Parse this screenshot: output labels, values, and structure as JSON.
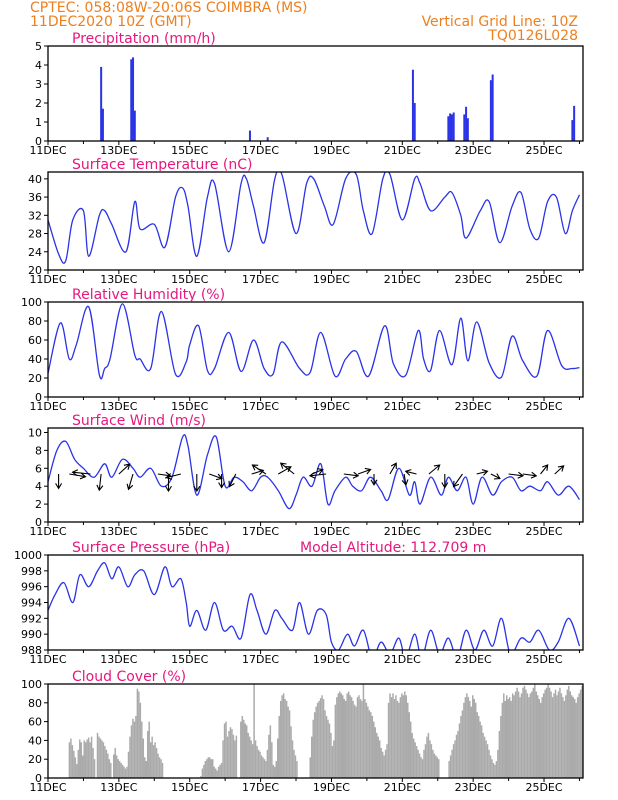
{
  "header": {
    "line1": "CPTEC:   058:08W-20:06S   COIMBRA (MS)",
    "line2": "11DEC2020 10Z (GMT)",
    "grid_note": "Vertical Grid Line: 10Z",
    "code": "TQ0126L028"
  },
  "colors": {
    "header": "#ee7f1f",
    "title": "#e6177f",
    "series": "#2a33e6",
    "cloud": "#aaaaaa",
    "arrow": "#000000"
  },
  "x_axis": {
    "labels": [
      "11DEC",
      "13DEC",
      "15DEC",
      "17DEC",
      "19DEC",
      "21DEC",
      "23DEC",
      "25DEC"
    ],
    "label_days": [
      0,
      2,
      4,
      6,
      8,
      10,
      12,
      14
    ],
    "range_days": [
      0,
      15.1
    ]
  },
  "chart_data": [
    {
      "type": "bar",
      "title": "Precipitation (mm/h)",
      "ylim": [
        0,
        5
      ],
      "yticks": [
        0,
        1,
        2,
        3,
        4,
        5
      ],
      "bars": [
        [
          1.5,
          3.9
        ],
        [
          1.55,
          1.7
        ],
        [
          2.35,
          4.3
        ],
        [
          2.4,
          4.4
        ],
        [
          2.45,
          1.6
        ],
        [
          5.7,
          0.55
        ],
        [
          6.2,
          0.2
        ],
        [
          10.3,
          3.75
        ],
        [
          10.35,
          2.0
        ],
        [
          11.3,
          1.3
        ],
        [
          11.35,
          1.45
        ],
        [
          11.4,
          1.4
        ],
        [
          11.45,
          1.5
        ],
        [
          11.75,
          1.4
        ],
        [
          11.8,
          1.8
        ],
        [
          11.85,
          1.2
        ],
        [
          12.5,
          3.2
        ],
        [
          12.55,
          3.5
        ],
        [
          14.8,
          1.1
        ],
        [
          14.85,
          1.85
        ]
      ]
    },
    {
      "type": "line",
      "title": "Surface Temperature (nC)",
      "ylim": [
        20,
        41.5
      ],
      "yticks": [
        20,
        24,
        28,
        32,
        36,
        40
      ],
      "x": [
        0,
        0.3,
        0.5,
        0.7,
        1.0,
        1.15,
        1.45,
        1.6,
        1.8,
        2.2,
        2.45,
        2.6,
        3.0,
        3.3,
        3.6,
        3.8,
        3.95,
        4.2,
        4.5,
        4.7,
        5.1,
        5.45,
        5.6,
        5.8,
        6.1,
        6.4,
        6.6,
        7.0,
        7.3,
        7.5,
        7.8,
        8.05,
        8.4,
        8.7,
        8.9,
        9.15,
        9.45,
        9.65,
        10.0,
        10.35,
        10.5,
        10.8,
        11.2,
        11.4,
        11.65,
        11.8,
        12.2,
        12.45,
        12.75,
        13.1,
        13.35,
        13.6,
        13.85,
        14.1,
        14.35,
        14.6,
        14.8,
        15.0
      ],
      "values": [
        31,
        23.5,
        22,
        31,
        33,
        23,
        32,
        33,
        30,
        24,
        35,
        29,
        30,
        25,
        36,
        38,
        34,
        23,
        36,
        39,
        24,
        39,
        40,
        34,
        26,
        40,
        41,
        28,
        39,
        40,
        34,
        30,
        40,
        41,
        33,
        28,
        40,
        41,
        31,
        40,
        39,
        33,
        36,
        37,
        32,
        27,
        33,
        35,
        26,
        34,
        37,
        29,
        27,
        35,
        36,
        28,
        33,
        36.5
      ]
    },
    {
      "type": "line",
      "title": "Relative Humidity (%)",
      "ylim": [
        0,
        100
      ],
      "yticks": [
        0,
        20,
        40,
        60,
        80,
        100
      ],
      "x": [
        0,
        0.35,
        0.6,
        0.8,
        1.15,
        1.45,
        1.6,
        1.75,
        2.1,
        2.45,
        2.6,
        2.9,
        3.2,
        3.6,
        3.9,
        4.0,
        4.25,
        4.5,
        4.7,
        5.1,
        5.45,
        5.8,
        6.1,
        6.35,
        6.6,
        7.1,
        7.4,
        7.7,
        8.1,
        8.4,
        8.7,
        9.05,
        9.5,
        9.75,
        10.1,
        10.45,
        10.6,
        10.8,
        11.05,
        11.4,
        11.65,
        11.85,
        12.1,
        12.45,
        12.8,
        13.1,
        13.4,
        13.8,
        14.1,
        14.5,
        14.8,
        15.0
      ],
      "values": [
        25,
        78,
        40,
        55,
        95,
        23,
        30,
        40,
        98,
        44,
        40,
        30,
        90,
        24,
        37,
        55,
        75,
        28,
        30,
        68,
        27,
        60,
        30,
        24,
        58,
        30,
        26,
        68,
        22,
        40,
        48,
        22,
        75,
        35,
        23,
        70,
        40,
        28,
        70,
        34,
        83,
        38,
        79,
        36,
        21,
        64,
        38,
        22,
        70,
        33,
        30,
        31
      ],
      "bold_ticks": [
        0,
        100
      ]
    },
    {
      "type": "line",
      "title": "Surface Wind (m/s)",
      "ylim": [
        0,
        10.5
      ],
      "yticks": [
        0,
        2,
        4,
        6,
        8,
        10
      ],
      "x": [
        0,
        0.25,
        0.5,
        0.75,
        1.0,
        1.3,
        1.6,
        1.8,
        2.1,
        2.4,
        2.6,
        2.9,
        3.2,
        3.5,
        3.8,
        3.95,
        4.2,
        4.5,
        4.75,
        5.0,
        5.25,
        5.5,
        5.75,
        6.0,
        6.2,
        6.5,
        6.8,
        7.0,
        7.2,
        7.45,
        7.7,
        7.9,
        8.1,
        8.4,
        8.6,
        8.85,
        9.1,
        9.4,
        9.6,
        9.9,
        10.2,
        10.35,
        10.5,
        10.8,
        11.1,
        11.3,
        11.55,
        11.8,
        12.0,
        12.25,
        12.55,
        12.8,
        13.1,
        13.35,
        13.6,
        13.9,
        14.1,
        14.4,
        14.7,
        15.0
      ],
      "values": [
        4.5,
        8,
        9,
        7,
        6,
        5,
        6.5,
        5,
        7,
        6,
        5,
        6,
        4,
        5,
        9.5,
        8.5,
        3,
        7.5,
        9.5,
        4,
        5,
        4.5,
        3.5,
        5,
        5,
        3.5,
        1.5,
        3,
        5,
        4,
        6.5,
        2,
        3.5,
        5,
        4,
        3.5,
        5,
        3.5,
        2.5,
        6,
        3,
        4.5,
        2,
        5,
        3,
        5,
        3.5,
        5,
        2,
        5,
        3,
        4.5,
        5,
        3.5,
        4,
        3.5,
        4.5,
        3,
        4,
        2.5
      ],
      "arrows": [
        [
          0.3,
          0,
          -1.6
        ],
        [
          0.6,
          1.8,
          -0.3
        ],
        [
          1.2,
          -2.0,
          0.2
        ],
        [
          1.5,
          -0.2,
          -1.8
        ],
        [
          2.0,
          1.2,
          1.1
        ],
        [
          2.4,
          -0.5,
          -1.7
        ],
        [
          3.1,
          1.4,
          -0.2
        ],
        [
          3.4,
          0,
          -1.9
        ],
        [
          3.75,
          -1.6,
          -0.4
        ],
        [
          4.2,
          0,
          -1.9
        ],
        [
          4.55,
          1.4,
          -0.5
        ],
        [
          4.9,
          0,
          -1.5
        ],
        [
          5.3,
          -0.7,
          -1.4
        ],
        [
          5.75,
          1.3,
          0.4
        ],
        [
          6.15,
          -1.5,
          1.0
        ],
        [
          6.5,
          1.4,
          0.8
        ],
        [
          6.95,
          -1.5,
          1.2
        ],
        [
          7.45,
          1.2,
          0.5
        ],
        [
          7.85,
          -1.8,
          -0.2
        ],
        [
          8.35,
          1.6,
          -0.2
        ],
        [
          8.75,
          1.4,
          0.5
        ],
        [
          9.2,
          0,
          -1.2
        ],
        [
          9.65,
          0.7,
          1.2
        ],
        [
          10.05,
          0.2,
          -1.2
        ],
        [
          10.4,
          -1.2,
          0.3
        ],
        [
          10.75,
          1.2,
          1.0
        ],
        [
          11.2,
          0,
          -1.5
        ],
        [
          11.7,
          -1.0,
          -1.4
        ],
        [
          12.1,
          1.2,
          0.3
        ],
        [
          12.5,
          1.0,
          -0.5
        ],
        [
          13.0,
          1.6,
          -0.2
        ],
        [
          13.4,
          1.5,
          -0.2
        ],
        [
          13.9,
          0.8,
          1.0
        ],
        [
          14.3,
          1.0,
          0.9
        ]
      ]
    },
    {
      "type": "line",
      "title": "Surface Pressure (hPa)",
      "annotation": "Model Altitude: 112.709  m",
      "ylim": [
        988,
        1000
      ],
      "yticks": [
        988,
        990,
        992,
        994,
        996,
        998,
        1000
      ],
      "x": [
        0,
        0.2,
        0.45,
        0.7,
        0.9,
        1.15,
        1.4,
        1.6,
        1.8,
        2.0,
        2.25,
        2.45,
        2.7,
        3.0,
        3.3,
        3.5,
        3.75,
        3.9,
        4.0,
        4.2,
        4.45,
        4.7,
        4.95,
        5.2,
        5.45,
        5.7,
        5.9,
        6.15,
        6.4,
        6.6,
        6.9,
        7.1,
        7.35,
        7.6,
        7.85,
        8.0,
        8.2,
        8.45,
        8.65,
        8.9,
        9.15,
        9.4,
        9.65,
        9.9,
        10.1,
        10.35,
        10.55,
        10.8,
        11.05,
        11.3,
        11.55,
        11.8,
        12.05,
        12.3,
        12.55,
        12.8,
        13.05,
        13.35,
        13.6,
        13.85,
        14.15,
        14.4,
        14.7,
        15.0
      ],
      "values": [
        993,
        995,
        996.5,
        994,
        997.5,
        996,
        998,
        999,
        997,
        998.5,
        996,
        997.5,
        998,
        995,
        998.5,
        996,
        997,
        994,
        991,
        993,
        990.5,
        994,
        990.5,
        991,
        989.5,
        995,
        993,
        990,
        993,
        992,
        990.5,
        994,
        990,
        993,
        992.5,
        989,
        988,
        990,
        988.5,
        990.5,
        987,
        989,
        987.5,
        989.5,
        987,
        990,
        987,
        990.5,
        987.5,
        989.5,
        987,
        990.5,
        988,
        990.5,
        988.5,
        992,
        987.5,
        989.5,
        989,
        990.5,
        988,
        989,
        992,
        988.5
      ]
    },
    {
      "type": "bar",
      "title": "Cloud Cover (%)",
      "ylim": [
        0,
        100
      ],
      "yticks": [
        0,
        20,
        40,
        60,
        80,
        100
      ],
      "x_step_days": 0.0417,
      "values": [
        0,
        0,
        0,
        0,
        0,
        0,
        0,
        0,
        0,
        0,
        0,
        0,
        0,
        0,
        38,
        42,
        35,
        29,
        22,
        15,
        30,
        41,
        38,
        24,
        40,
        38,
        41,
        43,
        38,
        44,
        32,
        20,
        0,
        48,
        44,
        42,
        40,
        38,
        34,
        30,
        26,
        20,
        16,
        0,
        25,
        32,
        24,
        20,
        18,
        16,
        14,
        12,
        10,
        12,
        28,
        44,
        56,
        63,
        60,
        66,
        95,
        92,
        80,
        60,
        42,
        22,
        18,
        50,
        60,
        38,
        44,
        35,
        38,
        32,
        26,
        22,
        20,
        16,
        0,
        0,
        0,
        0,
        0,
        0,
        0,
        0,
        0,
        0,
        0,
        0,
        0,
        0,
        0,
        0,
        0,
        0,
        0,
        0,
        0,
        0,
        0,
        0,
        0,
        2,
        10,
        14,
        18,
        20,
        22,
        22,
        20,
        20,
        12,
        10,
        8,
        12,
        14,
        16,
        40,
        58,
        60,
        44,
        50,
        54,
        52,
        46,
        40,
        45,
        0,
        0,
        60,
        66,
        62,
        58,
        56,
        48,
        44,
        40,
        36,
        100,
        40,
        34,
        30,
        28,
        24,
        22,
        20,
        18,
        30,
        46,
        56,
        38,
        14,
        12,
        18,
        42,
        66,
        82,
        88,
        90,
        84,
        82,
        76,
        72,
        55,
        40,
        30,
        24,
        18,
        0,
        0,
        0,
        0,
        0,
        0,
        0,
        0,
        22,
        44,
        62,
        70,
        76,
        80,
        82,
        85,
        88,
        84,
        72,
        66,
        62,
        58,
        48,
        34,
        40,
        78,
        86,
        90,
        92,
        90,
        88,
        84,
        82,
        90,
        92,
        88,
        86,
        82,
        78,
        76,
        86,
        88,
        84,
        82,
        100,
        84,
        80,
        76,
        72,
        70,
        66,
        60,
        54,
        48,
        44,
        40,
        32,
        28,
        24,
        30,
        36,
        80,
        90,
        86,
        90,
        84,
        88,
        82,
        80,
        86,
        90,
        88,
        92,
        88,
        80,
        70,
        60,
        48,
        42,
        38,
        34,
        30,
        26,
        22,
        20,
        30,
        36,
        44,
        48,
        40,
        36,
        30,
        26,
        24,
        22,
        20,
        0,
        0,
        0,
        0,
        0,
        0,
        18,
        24,
        30,
        36,
        40,
        46,
        50,
        58,
        66,
        72,
        80,
        86,
        90,
        86,
        82,
        76,
        88,
        84,
        80,
        70,
        66,
        60,
        56,
        48,
        44,
        40,
        36,
        30,
        24,
        20,
        16,
        14,
        18,
        30,
        50,
        66,
        80,
        90,
        82,
        88,
        84,
        86,
        82,
        90,
        88,
        92,
        96,
        92,
        86,
        90,
        96,
        98,
        94,
        90,
        86,
        90,
        92,
        96,
        100,
        92,
        88,
        84,
        80,
        86,
        90,
        94,
        96,
        100,
        96,
        92,
        86,
        90,
        94,
        88,
        92,
        96,
        90,
        86,
        82,
        88,
        94,
        98,
        92,
        88,
        86,
        84,
        80,
        86,
        90,
        94,
        98,
        96,
        92,
        100,
        98,
        94,
        90,
        86,
        90,
        94,
        96,
        92,
        88,
        84,
        86,
        88,
        92,
        96,
        94,
        100,
        96,
        92,
        94,
        96,
        92,
        88,
        82,
        84,
        86,
        88,
        90,
        86,
        82,
        78,
        80,
        84,
        86,
        90,
        94,
        96,
        92,
        86,
        80,
        74,
        70,
        66,
        64,
        62,
        66,
        70,
        76,
        80,
        86,
        90,
        94,
        96,
        92,
        88,
        84,
        78,
        70,
        64,
        60,
        66,
        72,
        80,
        86,
        90,
        96,
        100,
        94,
        86,
        80
      ]
    }
  ]
}
